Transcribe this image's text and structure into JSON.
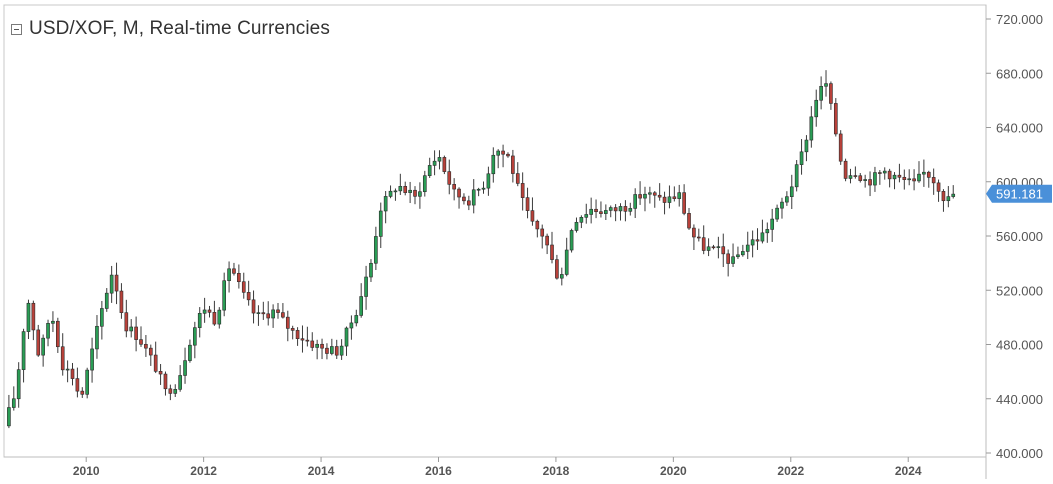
{
  "window": {
    "title": "USD/XOF, M, Real-time Currencies"
  },
  "colors": {
    "up": "#2a9d55",
    "down": "#b8413a",
    "wick": "#3a3a3a",
    "axis": "#c8c8c8",
    "tick_text": "#555555",
    "price_badge": "#4a90d9",
    "background": "#ffffff"
  },
  "chart_data": {
    "type": "candlestick",
    "title": "USD/XOF, M, Real-time Currencies",
    "ylim": [
      400,
      720
    ],
    "xlim": [
      2008.6,
      2024.95
    ],
    "y_ticks": [
      400,
      440,
      480,
      520,
      560,
      600,
      640,
      680,
      720
    ],
    "y_tick_labels": [
      "400.000",
      "440.000",
      "480.000",
      "520.000",
      "560.000",
      "600.000",
      "640.000",
      "680.000",
      "720.000"
    ],
    "x_ticks": [
      2010,
      2012,
      2014,
      2016,
      2018,
      2020,
      2022,
      2024
    ],
    "x_tick_labels": [
      "2010",
      "2012",
      "2014",
      "2016",
      "2018",
      "2020",
      "2022",
      "2024"
    ],
    "last_price": 591.181,
    "last_price_label": "591.181",
    "anchors": [
      [
        2008.6,
        420
      ],
      [
        2008.8,
        445
      ],
      [
        2009.0,
        515
      ],
      [
        2009.2,
        470
      ],
      [
        2009.4,
        505
      ],
      [
        2009.6,
        465
      ],
      [
        2009.8,
        455
      ],
      [
        2009.9,
        438
      ],
      [
        2010.1,
        475
      ],
      [
        2010.3,
        512
      ],
      [
        2010.45,
        535
      ],
      [
        2010.65,
        495
      ],
      [
        2010.9,
        485
      ],
      [
        2011.2,
        462
      ],
      [
        2011.35,
        445
      ],
      [
        2011.55,
        452
      ],
      [
        2011.8,
        488
      ],
      [
        2012.0,
        508
      ],
      [
        2012.2,
        498
      ],
      [
        2012.45,
        540
      ],
      [
        2012.65,
        518
      ],
      [
        2012.9,
        500
      ],
      [
        2013.2,
        505
      ],
      [
        2013.5,
        490
      ],
      [
        2013.8,
        482
      ],
      [
        2014.0,
        477
      ],
      [
        2014.3,
        475
      ],
      [
        2014.6,
        505
      ],
      [
        2014.85,
        540
      ],
      [
        2015.0,
        580
      ],
      [
        2015.3,
        598
      ],
      [
        2015.6,
        588
      ],
      [
        2015.85,
        612
      ],
      [
        2016.0,
        620
      ],
      [
        2016.25,
        592
      ],
      [
        2016.5,
        586
      ],
      [
        2016.8,
        600
      ],
      [
        2016.95,
        625
      ],
      [
        2017.2,
        618
      ],
      [
        2017.4,
        588
      ],
      [
        2017.6,
        568
      ],
      [
        2017.8,
        560
      ],
      [
        2018.0,
        532
      ],
      [
        2018.1,
        534
      ],
      [
        2018.3,
        572
      ],
      [
        2018.6,
        580
      ],
      [
        2018.9,
        578
      ],
      [
        2019.2,
        582
      ],
      [
        2019.5,
        592
      ],
      [
        2019.8,
        586
      ],
      [
        2020.1,
        590
      ],
      [
        2020.3,
        562
      ],
      [
        2020.5,
        552
      ],
      [
        2020.8,
        548
      ],
      [
        2021.0,
        540
      ],
      [
        2021.2,
        552
      ],
      [
        2021.5,
        560
      ],
      [
        2021.8,
        580
      ],
      [
        2022.0,
        596
      ],
      [
        2022.2,
        622
      ],
      [
        2022.45,
        665
      ],
      [
        2022.6,
        672
      ],
      [
        2022.75,
        640
      ],
      [
        2022.9,
        605
      ],
      [
        2023.1,
        608
      ],
      [
        2023.3,
        600
      ],
      [
        2023.6,
        608
      ],
      [
        2023.85,
        602
      ],
      [
        2024.1,
        598
      ],
      [
        2024.3,
        608
      ],
      [
        2024.5,
        598
      ],
      [
        2024.65,
        585
      ],
      [
        2024.75,
        591
      ]
    ]
  }
}
